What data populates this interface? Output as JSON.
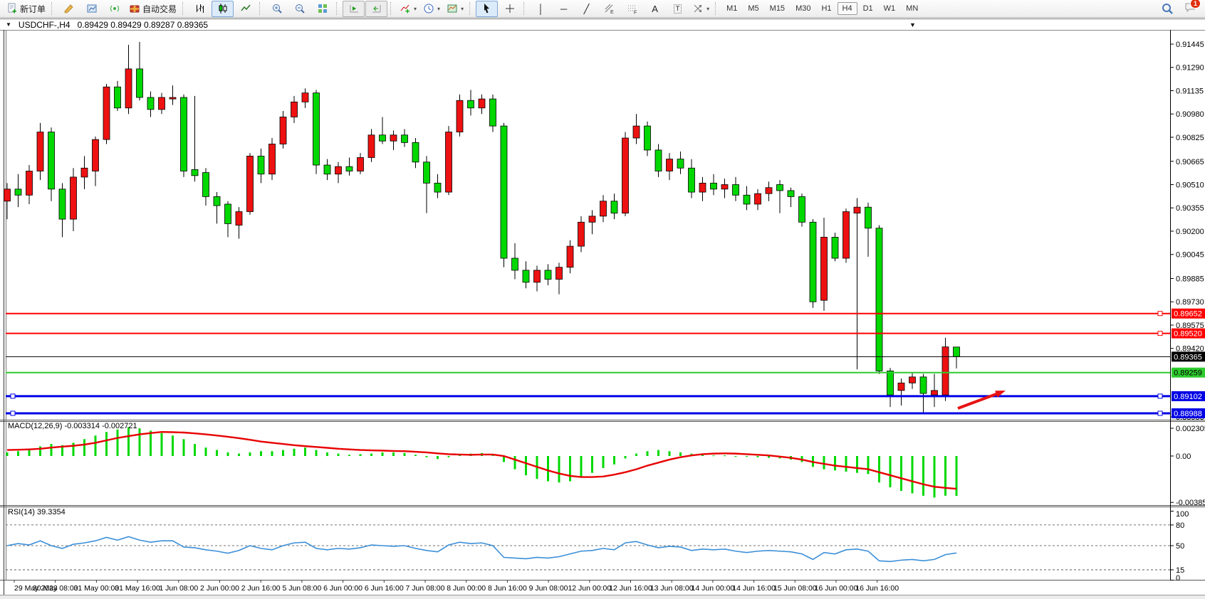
{
  "toolbar": {
    "notification_count": "1",
    "items": [
      {
        "type": "button",
        "name": "new-order-button",
        "icon": "new-order-icon",
        "label": "新订单"
      },
      {
        "type": "sep"
      },
      {
        "type": "button",
        "name": "styler-button",
        "icon": "crayon-icon"
      },
      {
        "type": "button",
        "name": "data-window-button",
        "icon": "stats-icon"
      },
      {
        "type": "button",
        "name": "signals-button",
        "icon": "signal-icon"
      },
      {
        "type": "button",
        "name": "auto-trading-button",
        "icon": "autotrade-icon",
        "label": "自动交易"
      },
      {
        "type": "sep"
      },
      {
        "type": "button",
        "name": "bar-chart-button",
        "icon": "bar-chart-icon"
      },
      {
        "type": "button",
        "name": "candlestick-chart-button",
        "icon": "candlestick-icon",
        "active": true
      },
      {
        "type": "button",
        "name": "line-chart-button",
        "icon": "line-chart-icon"
      },
      {
        "type": "sep"
      },
      {
        "type": "button",
        "name": "zoom-in-button",
        "icon": "zoom-in-icon"
      },
      {
        "type": "button",
        "name": "zoom-out-button",
        "icon": "zoom-out-icon"
      },
      {
        "type": "button",
        "name": "tile-windows-button",
        "icon": "tile-windows-icon"
      },
      {
        "type": "sep"
      },
      {
        "type": "button",
        "name": "auto-scroll-button",
        "icon": "auto-scroll-icon",
        "pressed": true
      },
      {
        "type": "button",
        "name": "chart-shift-button",
        "icon": "chart-shift-icon",
        "pressed": true
      },
      {
        "type": "sep"
      },
      {
        "type": "button",
        "name": "indicators-button",
        "icon": "indicators-icon",
        "dropdown": true
      },
      {
        "type": "button",
        "name": "periods-button",
        "icon": "periods-icon",
        "dropdown": true
      },
      {
        "type": "button",
        "name": "templates-button",
        "icon": "templates-icon",
        "dropdown": true
      },
      {
        "type": "sep"
      },
      {
        "type": "button",
        "name": "cursor-button",
        "icon": "cursor-icon",
        "active": true
      },
      {
        "type": "button",
        "name": "crosshair-button",
        "icon": "crosshair-icon"
      },
      {
        "type": "sep"
      },
      {
        "type": "button",
        "name": "vertical-line-button",
        "glyph": "│"
      },
      {
        "type": "button",
        "name": "horizontal-line-button",
        "glyph": "─"
      },
      {
        "type": "button",
        "name": "trendline-button",
        "glyph": "╱"
      },
      {
        "type": "button",
        "name": "equidistant-channel-button",
        "icon": "fibo-channel-icon"
      },
      {
        "type": "button",
        "name": "fibonacci-button",
        "icon": "fibo-grid-icon"
      },
      {
        "type": "button",
        "name": "text-button",
        "glyph": "A"
      },
      {
        "type": "button",
        "name": "text-label-button",
        "glyph": "T",
        "boxed": true
      },
      {
        "type": "button",
        "name": "shapes-button",
        "icon": "shapes-icon",
        "dropdown": true
      },
      {
        "type": "sep"
      },
      {
        "type": "tf",
        "name": "timeframe-m1",
        "label": "M1"
      },
      {
        "type": "tf",
        "name": "timeframe-m5",
        "label": "M5"
      },
      {
        "type": "tf",
        "name": "timeframe-m15",
        "label": "M15"
      },
      {
        "type": "tf",
        "name": "timeframe-m30",
        "label": "M30"
      },
      {
        "type": "tf",
        "name": "timeframe-h1",
        "label": "H1"
      },
      {
        "type": "tf",
        "name": "timeframe-h4",
        "label": "H4",
        "active": true
      },
      {
        "type": "tf",
        "name": "timeframe-d1",
        "label": "D1"
      },
      {
        "type": "tf",
        "name": "timeframe-w1",
        "label": "W1"
      },
      {
        "type": "tf",
        "name": "timeframe-mn",
        "label": "MN"
      },
      {
        "type": "spacer"
      },
      {
        "type": "button",
        "name": "search-button",
        "icon": "search-icon"
      },
      {
        "type": "button",
        "name": "chat-button",
        "icon": "chat-icon",
        "badge": "1"
      }
    ]
  },
  "titlebar": {
    "collapse_glyph": "▼",
    "symbol_title": "USDCHF-,H4",
    "ohlc": "0.89429 0.89429 0.89287 0.89365",
    "window_menu_glyph": "▼"
  },
  "chart_data": {
    "type": "candlestick",
    "symbol": "USDCHF-",
    "timeframe": "H4",
    "ohlc_display": {
      "open": "0.89429",
      "high": "0.89429",
      "low": "0.89287",
      "close": "0.89365"
    },
    "y_axis_labels": [
      "0.91445",
      "0.91290",
      "0.91135",
      "0.90980",
      "0.90825",
      "0.90665",
      "0.90510",
      "0.90355",
      "0.90200",
      "0.90045",
      "0.89885",
      "0.89730",
      "0.89575",
      "0.89420",
      "0.88950"
    ],
    "x_axis_labels": [
      "29 May 2023",
      "30 May 08:00",
      "31 May 00:00",
      "31 May 16:00",
      "1 Jun 08:00",
      "2 Jun 00:00",
      "2 Jun 16:00",
      "5 Jun 08:00",
      "6 Jun 00:00",
      "6 Jun 16:00",
      "7 Jun 08:00",
      "8 Jun 00:00",
      "8 Jun 16:00",
      "9 Jun 08:00",
      "12 Jun 00:00",
      "12 Jun 16:00",
      "13 Jun 08:00",
      "14 Jun 00:00",
      "14 Jun 16:00",
      "15 Jun 08:00",
      "16 Jun 00:00",
      "16 Jun 16:00"
    ],
    "hlines": [
      {
        "price": 0.89652,
        "label": "0.89652",
        "color": "#ff0000",
        "width": 2,
        "label_fg": "#ffffff",
        "marker": "right"
      },
      {
        "price": 0.8952,
        "label": "0.89520",
        "color": "#ff0000",
        "width": 2,
        "label_fg": "#ffffff",
        "marker": "right"
      },
      {
        "price": 0.89365,
        "label": "0.89365",
        "color": "#000000",
        "width": 1,
        "label_fg": "#ffffff",
        "marker": "none"
      },
      {
        "price": 0.89259,
        "label": "0.89259",
        "color": "#2fcc2f",
        "width": 2,
        "label_fg": "#000000",
        "marker": "none"
      },
      {
        "price": 0.89102,
        "label": "0.89102",
        "color": "#0000e6",
        "width": 3,
        "label_fg": "#ffffff",
        "marker": "both"
      },
      {
        "price": 0.88988,
        "label": "0.88988",
        "color": "#0000e6",
        "width": 3,
        "label_fg": "#ffffff",
        "marker": "both"
      }
    ],
    "candles": [
      [
        0.904,
        0.9052,
        0.9028,
        0.9048
      ],
      [
        0.9048,
        0.9058,
        0.9036,
        0.9044
      ],
      [
        0.9044,
        0.9064,
        0.9038,
        0.906
      ],
      [
        0.906,
        0.9092,
        0.9054,
        0.9086
      ],
      [
        0.9086,
        0.9089,
        0.904,
        0.9048
      ],
      [
        0.9048,
        0.9052,
        0.9016,
        0.9028
      ],
      [
        0.9028,
        0.9062,
        0.902,
        0.9056
      ],
      [
        0.9056,
        0.907,
        0.9048,
        0.9062
      ],
      [
        0.906,
        0.9083,
        0.905,
        0.9081
      ],
      [
        0.9081,
        0.9118,
        0.9078,
        0.9116
      ],
      [
        0.9116,
        0.912,
        0.91,
        0.9102
      ],
      [
        0.9102,
        0.9144,
        0.9098,
        0.9128
      ],
      [
        0.9128,
        0.9146,
        0.9107,
        0.9109
      ],
      [
        0.9109,
        0.9113,
        0.9096,
        0.9101
      ],
      [
        0.9101,
        0.9112,
        0.9098,
        0.9109
      ],
      [
        0.9108,
        0.9117,
        0.9104,
        0.9109
      ],
      [
        0.9109,
        0.9111,
        0.9056,
        0.906
      ],
      [
        0.9061,
        0.911,
        0.9053,
        0.9057
      ],
      [
        0.9059,
        0.9062,
        0.9037,
        0.9043
      ],
      [
        0.9043,
        0.9046,
        0.9025,
        0.9037
      ],
      [
        0.9038,
        0.904,
        0.9016,
        0.9025
      ],
      [
        0.9024,
        0.9036,
        0.9015,
        0.9033
      ],
      [
        0.9033,
        0.9072,
        0.9031,
        0.907
      ],
      [
        0.907,
        0.9075,
        0.9052,
        0.9058
      ],
      [
        0.9058,
        0.9082,
        0.9054,
        0.9078
      ],
      [
        0.9078,
        0.91,
        0.9075,
        0.9096
      ],
      [
        0.9096,
        0.911,
        0.9092,
        0.9106
      ],
      [
        0.9106,
        0.9115,
        0.9102,
        0.9112
      ],
      [
        0.9112,
        0.9114,
        0.9058,
        0.9064
      ],
      [
        0.9064,
        0.9068,
        0.9054,
        0.9058
      ],
      [
        0.9058,
        0.9066,
        0.9052,
        0.9063
      ],
      [
        0.9063,
        0.9069,
        0.9057,
        0.906
      ],
      [
        0.906,
        0.9072,
        0.9058,
        0.9069
      ],
      [
        0.9069,
        0.9088,
        0.9066,
        0.9084
      ],
      [
        0.9084,
        0.9096,
        0.9078,
        0.908
      ],
      [
        0.908,
        0.9087,
        0.9074,
        0.9084
      ],
      [
        0.9084,
        0.9088,
        0.9076,
        0.9079
      ],
      [
        0.9079,
        0.9082,
        0.9062,
        0.9066
      ],
      [
        0.9066,
        0.907,
        0.9032,
        0.9052
      ],
      [
        0.9052,
        0.9058,
        0.9042,
        0.9046
      ],
      [
        0.9046,
        0.909,
        0.9044,
        0.9086
      ],
      [
        0.9086,
        0.9111,
        0.9083,
        0.9107
      ],
      [
        0.9107,
        0.9114,
        0.9097,
        0.9102
      ],
      [
        0.9102,
        0.9111,
        0.9098,
        0.9108
      ],
      [
        0.9108,
        0.9111,
        0.9086,
        0.909
      ],
      [
        0.909,
        0.9092,
        0.8996,
        0.9002
      ],
      [
        0.9002,
        0.9012,
        0.8988,
        0.8994
      ],
      [
        0.8994,
        0.9,
        0.8982,
        0.8986
      ],
      [
        0.8986,
        0.8997,
        0.898,
        0.8994
      ],
      [
        0.8994,
        0.8998,
        0.8984,
        0.8988
      ],
      [
        0.8988,
        0.8999,
        0.8978,
        0.8996
      ],
      [
        0.8996,
        0.9014,
        0.8992,
        0.901
      ],
      [
        0.901,
        0.903,
        0.9006,
        0.9026
      ],
      [
        0.9026,
        0.9034,
        0.9018,
        0.903
      ],
      [
        0.903,
        0.9044,
        0.9026,
        0.904
      ],
      [
        0.904,
        0.9045,
        0.9028,
        0.9032
      ],
      [
        0.9032,
        0.9086,
        0.903,
        0.9082
      ],
      [
        0.9082,
        0.9098,
        0.9078,
        0.909
      ],
      [
        0.909,
        0.9093,
        0.907,
        0.9074
      ],
      [
        0.9074,
        0.9078,
        0.9056,
        0.906
      ],
      [
        0.906,
        0.9072,
        0.9054,
        0.9068
      ],
      [
        0.9068,
        0.9073,
        0.9058,
        0.9062
      ],
      [
        0.9062,
        0.9068,
        0.9042,
        0.9046
      ],
      [
        0.9046,
        0.9056,
        0.904,
        0.9052
      ],
      [
        0.9052,
        0.9058,
        0.9044,
        0.9048
      ],
      [
        0.9048,
        0.9055,
        0.9042,
        0.9051
      ],
      [
        0.9051,
        0.9056,
        0.904,
        0.9044
      ],
      [
        0.9044,
        0.905,
        0.9034,
        0.9038
      ],
      [
        0.9038,
        0.9048,
        0.9034,
        0.9045
      ],
      [
        0.9045,
        0.9053,
        0.904,
        0.9049
      ],
      [
        0.9051,
        0.9054,
        0.9032,
        0.9047
      ],
      [
        0.9047,
        0.9049,
        0.9036,
        0.9043
      ],
      [
        0.9043,
        0.9045,
        0.9023,
        0.9026
      ],
      [
        0.9026,
        0.9028,
        0.8969,
        0.8973
      ],
      [
        0.8974,
        0.9029,
        0.8967,
        0.9016
      ],
      [
        0.9016,
        0.9019,
        0.9,
        0.9002
      ],
      [
        0.9002,
        0.9035,
        0.8999,
        0.9033
      ],
      [
        0.9032,
        0.9042,
        0.8928,
        0.9036
      ],
      [
        0.9036,
        0.9039,
        0.9003,
        0.9022
      ],
      [
        0.9022,
        0.9024,
        0.8925,
        0.8927
      ],
      [
        0.8927,
        0.8929,
        0.8903,
        0.8911
      ],
      [
        0.8914,
        0.8922,
        0.8904,
        0.8919
      ],
      [
        0.8919,
        0.8926,
        0.8915,
        0.8923
      ],
      [
        0.8923,
        0.8925,
        0.8899,
        0.8912
      ],
      [
        0.8911,
        0.8925,
        0.8903,
        0.8914
      ],
      [
        0.8911,
        0.8949,
        0.8907,
        0.8943
      ],
      [
        0.89429,
        0.89429,
        0.89287,
        0.89365
      ]
    ],
    "macd": {
      "label": "MACD(12,26,9)",
      "values_text": "-0.003314 -0.002721",
      "axis_labels": [
        "0.002305",
        "0.00",
        "-0.003855"
      ],
      "histogram": [
        0.0003,
        0.0004,
        0.0005,
        0.0008,
        0.001,
        0.0009,
        0.0011,
        0.0014,
        0.0017,
        0.002,
        0.0022,
        0.0024,
        0.0023,
        0.0021,
        0.0019,
        0.0017,
        0.0014,
        0.001,
        0.0007,
        0.0005,
        0.0003,
        0.0002,
        0.0003,
        0.0004,
        0.0004,
        0.0005,
        0.0006,
        0.0007,
        0.0005,
        0.0003,
        0.0002,
        0.0001,
        0.00015,
        0.0002,
        0.0003,
        0.0003,
        0.00025,
        0.0001,
        -0.0001,
        -0.00025,
        -0.0001,
        0.00015,
        0.0002,
        0.00025,
        0.0001,
        -0.0005,
        -0.0011,
        -0.0016,
        -0.0019,
        -0.0021,
        -0.0022,
        -0.0021,
        -0.0018,
        -0.0014,
        -0.001,
        -0.0007,
        -0.0002,
        0.0002,
        0.0004,
        0.0005,
        0.0004,
        0.0003,
        0.0002,
        0.0001,
        5e-05,
        5e-05,
        0,
        -5e-05,
        -0.0001,
        -0.00015,
        -0.0002,
        -0.0003,
        -0.0005,
        -0.0009,
        -0.0011,
        -0.0012,
        -0.0013,
        -0.0014,
        -0.0015,
        -0.0022,
        -0.0026,
        -0.0029,
        -0.0031,
        -0.0033,
        -0.00345,
        -0.0033,
        -0.003314
      ],
      "signal": [
        0.0005,
        0.00052,
        0.00055,
        0.0006,
        0.0007,
        0.00078,
        0.00085,
        0.00095,
        0.0011,
        0.0013,
        0.0015,
        0.00165,
        0.0018,
        0.0019,
        0.002,
        0.00198,
        0.00195,
        0.00188,
        0.0018,
        0.0017,
        0.0016,
        0.00148,
        0.00135,
        0.0012,
        0.0011,
        0.001,
        0.0009,
        0.00082,
        0.00075,
        0.00068,
        0.0006,
        0.00055,
        0.0005,
        0.00047,
        0.00045,
        0.00042,
        0.0004,
        0.00035,
        0.0003,
        0.00022,
        0.00015,
        0.00012,
        0.0001,
        0.00012,
        0.00012,
        0,
        -0.0003,
        -0.0006,
        -0.0009,
        -0.0012,
        -0.00145,
        -0.00165,
        -0.00175,
        -0.00175,
        -0.0017,
        -0.00155,
        -0.00135,
        -0.0011,
        -0.0008,
        -0.00055,
        -0.0003,
        -0.0001,
        5e-05,
        0.00015,
        0.0002,
        0.00022,
        0.0002,
        0.00015,
        0.0001,
        5e-05,
        -5e-05,
        -0.00015,
        -0.0003,
        -0.0005,
        -0.00065,
        -0.0008,
        -0.0009,
        -0.001,
        -0.0011,
        -0.00135,
        -0.0016,
        -0.00185,
        -0.0021,
        -0.00235,
        -0.00255,
        -0.00265,
        -0.002721
      ]
    },
    "rsi": {
      "label": "RSI(14)",
      "value_text": "39.3354",
      "axis_labels": [
        "100",
        "80",
        "50",
        "15",
        "0"
      ],
      "levels": [
        80,
        50,
        15
      ],
      "values": [
        50,
        53,
        51,
        57,
        50,
        46,
        52,
        54,
        57,
        62,
        58,
        63,
        58,
        55,
        57,
        57,
        48,
        47,
        44,
        42,
        39,
        43,
        50,
        46,
        44,
        50,
        54,
        55,
        46,
        44,
        46,
        45,
        47,
        51,
        50,
        49,
        50,
        46,
        43,
        41,
        51,
        55,
        53,
        54,
        50,
        33,
        32,
        31,
        33,
        32,
        34,
        38,
        42,
        43,
        46,
        44,
        54,
        56,
        51,
        47,
        49,
        48,
        43,
        45,
        44,
        45,
        42,
        40,
        42,
        43,
        42,
        41,
        38,
        30,
        40,
        38,
        44,
        45,
        42,
        28,
        27,
        29,
        30,
        28,
        30,
        37,
        39.34
      ]
    },
    "annotation_arrow": {
      "from": [
        1345,
        574
      ],
      "to": [
        1412,
        549
      ],
      "color": "#e81212"
    },
    "colors": {
      "bull": "#ee1111",
      "bear": "#00d800",
      "wick": "#000000",
      "macd_hist": "#00d800",
      "macd_signal": "#e80000",
      "rsi_line": "#3b8fd8"
    },
    "legend_position": "none",
    "grid": false
  }
}
